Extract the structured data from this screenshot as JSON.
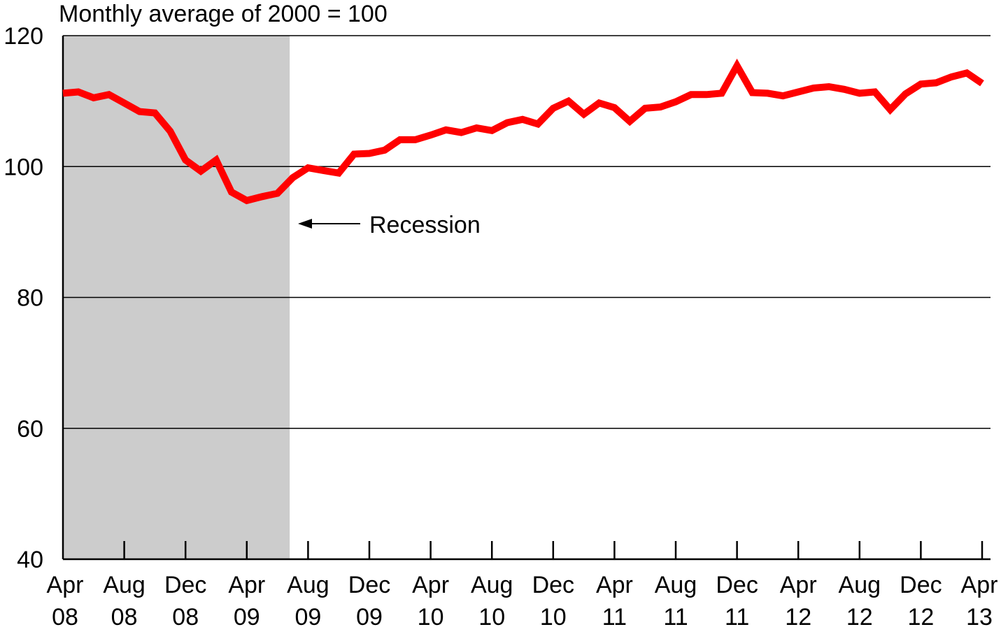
{
  "chart_data": {
    "type": "line",
    "subtitle": "Monthly average of 2000 = 100",
    "annotation": "Recession",
    "ylim": [
      40,
      120
    ],
    "y_ticks": [
      "120",
      "100",
      "80",
      "60",
      "40"
    ],
    "y_tick_values": [
      120,
      100,
      80,
      60,
      40
    ],
    "x_tick_labels": [
      {
        "month": "Apr",
        "year": "08",
        "index": 0
      },
      {
        "month": "Aug",
        "year": "08",
        "index": 4
      },
      {
        "month": "Dec",
        "year": "08",
        "index": 8
      },
      {
        "month": "Apr",
        "year": "09",
        "index": 12
      },
      {
        "month": "Aug",
        "year": "09",
        "index": 16
      },
      {
        "month": "Dec",
        "year": "09",
        "index": 20
      },
      {
        "month": "Apr",
        "year": "10",
        "index": 24
      },
      {
        "month": "Aug",
        "year": "10",
        "index": 28
      },
      {
        "month": "Dec",
        "year": "10",
        "index": 32
      },
      {
        "month": "Apr",
        "year": "11",
        "index": 36
      },
      {
        "month": "Aug",
        "year": "11",
        "index": 40
      },
      {
        "month": "Dec",
        "year": "11",
        "index": 44
      },
      {
        "month": "Apr",
        "year": "12",
        "index": 48
      },
      {
        "month": "Aug",
        "year": "12",
        "index": 52
      },
      {
        "month": "Dec",
        "year": "12",
        "index": 56
      },
      {
        "month": "Apr",
        "year": "13",
        "index": 60
      }
    ],
    "recession_shade": {
      "start_index": 0,
      "end_index": 14.8
    },
    "grid": "horizontal",
    "series": [
      {
        "color": "#ff0000",
        "x": [
          "Apr 08",
          "May 08",
          "Jun 08",
          "Jul 08",
          "Aug 08",
          "Sep 08",
          "Oct 08",
          "Nov 08",
          "Dec 08",
          "Jan 09",
          "Feb 09",
          "Mar 09",
          "Apr 09",
          "May 09",
          "Jun 09",
          "Jul 09",
          "Aug 09",
          "Sep 09",
          "Oct 09",
          "Nov 09",
          "Dec 09",
          "Jan 10",
          "Feb 10",
          "Mar 10",
          "Apr 10",
          "May 10",
          "Jun 10",
          "Jul 10",
          "Aug 10",
          "Sep 10",
          "Oct 10",
          "Nov 10",
          "Dec 10",
          "Jan 11",
          "Feb 11",
          "Mar 11",
          "Apr 11",
          "May 11",
          "Jun 11",
          "Jul 11",
          "Aug 11",
          "Sep 11",
          "Oct 11",
          "Nov 11",
          "Dec 11",
          "Jan 12",
          "Feb 12",
          "Mar 12",
          "Apr 12",
          "May 12",
          "Jun 12",
          "Jul 12",
          "Aug 12",
          "Sep 12",
          "Oct 12",
          "Nov 12",
          "Dec 12",
          "Jan 13",
          "Feb 13",
          "Mar 13",
          "Apr 13"
        ],
        "values": [
          111.2,
          111.4,
          110.5,
          111.0,
          109.7,
          108.4,
          108.2,
          105.4,
          101.0,
          99.3,
          101.0,
          96.1,
          94.8,
          95.4,
          95.9,
          98.3,
          99.8,
          99.4,
          99.0,
          101.9,
          102.0,
          102.5,
          104.1,
          104.1,
          104.8,
          105.6,
          105.2,
          105.9,
          105.5,
          106.7,
          107.2,
          106.5,
          108.9,
          110.0,
          108.0,
          109.7,
          109.0,
          106.9,
          108.9,
          109.1,
          109.9,
          111.0,
          111.0,
          111.2,
          115.4,
          111.3,
          111.2,
          110.8,
          111.4,
          112.0,
          112.2,
          111.8,
          111.2,
          111.4,
          108.7,
          111.1,
          112.6,
          112.8,
          113.7,
          114.3,
          112.7
        ]
      }
    ]
  }
}
